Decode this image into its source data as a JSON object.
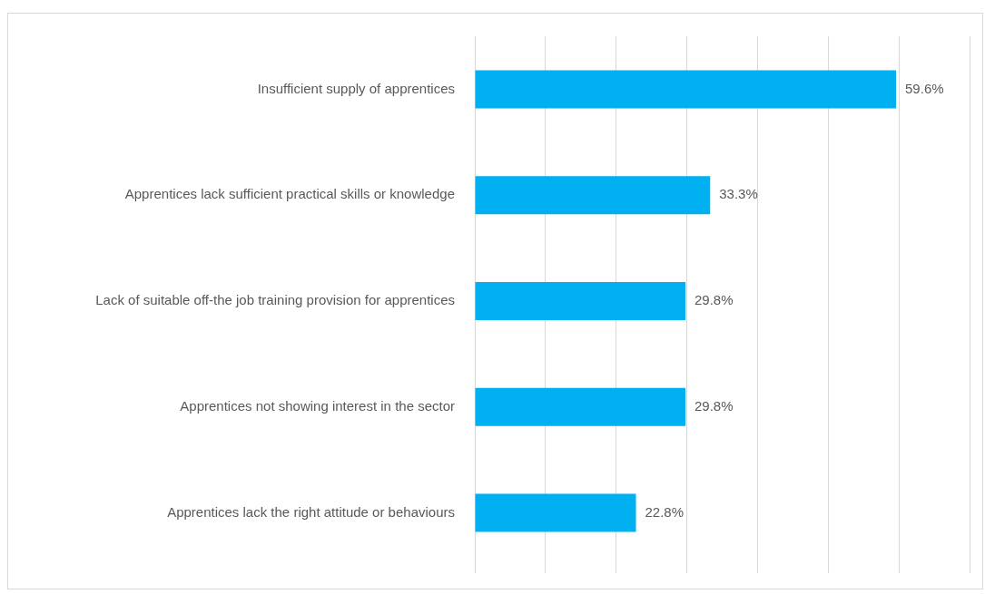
{
  "chart_data": {
    "type": "bar",
    "orientation": "horizontal",
    "categories": [
      "Insufficient supply of apprentices",
      "Apprentices lack sufficient practical skills or knowledge",
      "Lack of suitable off-the job training provision for apprentices",
      "Apprentices not showing interest in the sector",
      "Apprentices lack the right attitude or behaviours"
    ],
    "values": [
      59.6,
      33.3,
      29.8,
      29.8,
      22.8
    ],
    "value_labels": [
      "59.6%",
      "33.3%",
      "29.8%",
      "29.8%",
      "22.8%"
    ],
    "color": "#00b0f0",
    "xlim": [
      0,
      70
    ],
    "xticks": [
      {
        "value": 0,
        "label": null
      },
      {
        "value": 10,
        "label": null
      },
      {
        "value": 20,
        "label": null
      },
      {
        "value": 30,
        "label": null
      },
      {
        "value": 40,
        "label": null
      },
      {
        "value": 50,
        "label": null
      },
      {
        "value": 60,
        "label": null
      },
      {
        "value": 70,
        "label": null
      }
    ],
    "grid": "x",
    "tick_labels": "y",
    "legend": false
  }
}
